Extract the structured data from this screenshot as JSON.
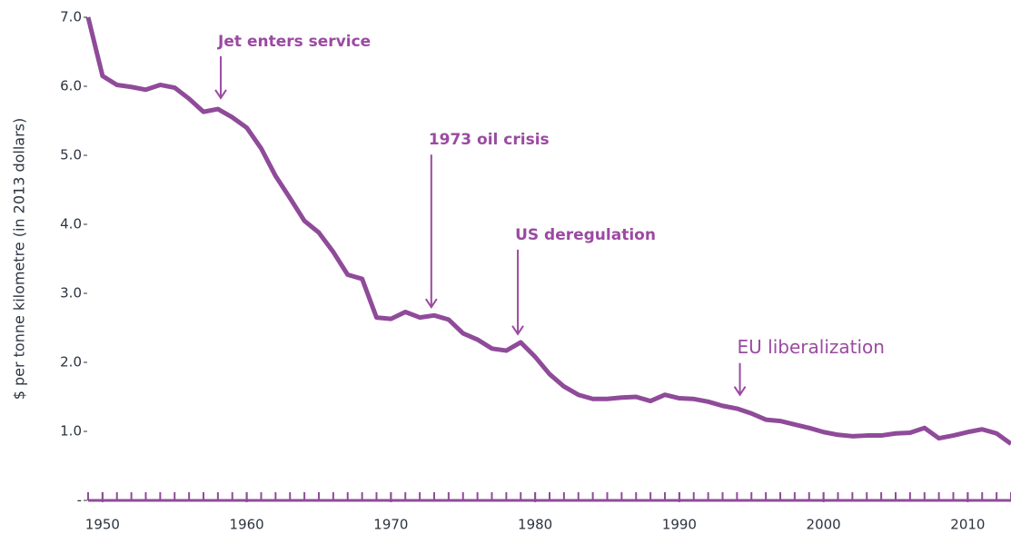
{
  "chart_data": {
    "type": "line",
    "y_label": "$ per tonne kilometre (in 2013 dollars)",
    "x": [
      1949,
      1950,
      1951,
      1952,
      1953,
      1954,
      1955,
      1956,
      1957,
      1958,
      1959,
      1960,
      1961,
      1962,
      1963,
      1964,
      1965,
      1966,
      1967,
      1968,
      1969,
      1970,
      1971,
      1972,
      1973,
      1974,
      1975,
      1976,
      1977,
      1978,
      1979,
      1980,
      1981,
      1982,
      1983,
      1984,
      1985,
      1986,
      1987,
      1988,
      1989,
      1990,
      1991,
      1992,
      1993,
      1994,
      1995,
      1996,
      1997,
      1998,
      1999,
      2000,
      2001,
      2002,
      2003,
      2004,
      2005,
      2006,
      2007,
      2008,
      2009,
      2010,
      2011,
      2012,
      2013
    ],
    "series": [
      {
        "color": "#8f4b99",
        "values": [
          7.0,
          6.15,
          6.02,
          5.99,
          5.95,
          6.02,
          5.98,
          5.82,
          5.63,
          5.67,
          5.55,
          5.4,
          5.1,
          4.7,
          4.38,
          4.05,
          3.88,
          3.6,
          3.27,
          3.21,
          2.65,
          2.63,
          2.73,
          2.65,
          2.68,
          2.62,
          2.42,
          2.33,
          2.2,
          2.17,
          2.29,
          2.08,
          1.83,
          1.65,
          1.53,
          1.47,
          1.47,
          1.49,
          1.5,
          1.44,
          1.53,
          1.48,
          1.47,
          1.43,
          1.37,
          1.33,
          1.26,
          1.17,
          1.15,
          1.1,
          1.05,
          0.99,
          0.95,
          0.93,
          0.94,
          0.94,
          0.97,
          0.98,
          1.05,
          0.9,
          0.94,
          0.99,
          1.03,
          0.97,
          0.82
        ]
      }
    ],
    "xlim": [
      1949,
      2013
    ],
    "ylim": [
      0,
      7
    ],
    "xticks": [
      1950,
      1960,
      1970,
      1980,
      1990,
      2000,
      2010
    ],
    "yticks": [
      {
        "value": 0,
        "label": "-"
      },
      {
        "value": 1,
        "label": "1.0"
      },
      {
        "value": 2,
        "label": "2.0"
      },
      {
        "value": 3,
        "label": "3.0"
      },
      {
        "value": 4,
        "label": "4.0"
      },
      {
        "value": 5,
        "label": "5.0"
      },
      {
        "value": 6,
        "label": "6.0"
      },
      {
        "value": 7,
        "label": "7.0"
      }
    ],
    "annotations": [
      {
        "text": "Jet enters service",
        "x": 1958.2,
        "y": 5.83
      },
      {
        "text": "1973 oil crisis",
        "x": 1972.8,
        "y": 2.8
      },
      {
        "text": "US deregulation",
        "x": 1978.8,
        "y": 2.41
      },
      {
        "text": "EU liberalization",
        "x": 1994.2,
        "y": 1.53
      }
    ]
  }
}
